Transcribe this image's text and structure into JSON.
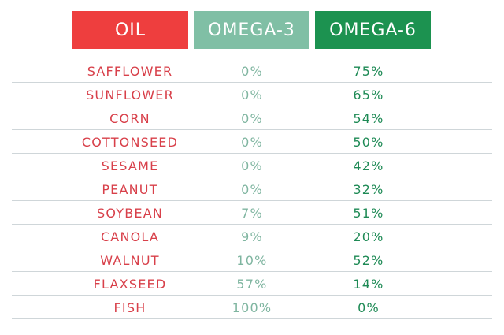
{
  "header": {
    "oil": "OIL",
    "omega3": "OMEGA-3",
    "omega6": "OMEGA-6"
  },
  "colors": {
    "oil_header": "#EE3E3E",
    "omega3_header": "#80BFA5",
    "omega6_header": "#1C9250",
    "oil_text": "#D8404A",
    "omega3_text": "#7FB5A0",
    "omega6_text": "#1E8A55"
  },
  "rows": [
    {
      "oil": "SAFFLOWER",
      "omega3": "0%",
      "omega6": "75%"
    },
    {
      "oil": "SUNFLOWER",
      "omega3": "0%",
      "omega6": "65%"
    },
    {
      "oil": "CORN",
      "omega3": "0%",
      "omega6": "54%"
    },
    {
      "oil": "COTTONSEED",
      "omega3": "0%",
      "omega6": "50%"
    },
    {
      "oil": "SESAME",
      "omega3": "0%",
      "omega6": "42%"
    },
    {
      "oil": "PEANUT",
      "omega3": "0%",
      "omega6": "32%"
    },
    {
      "oil": "SOYBEAN",
      "omega3": "7%",
      "omega6": "51%"
    },
    {
      "oil": "CANOLA",
      "omega3": "9%",
      "omega6": "20%"
    },
    {
      "oil": "WALNUT",
      "omega3": "10%",
      "omega6": "52%"
    },
    {
      "oil": "FLAXSEED",
      "omega3": "57%",
      "omega6": "14%"
    },
    {
      "oil": "FISH",
      "omega3": "100%",
      "omega6": "0%"
    }
  ],
  "chart_data": {
    "type": "table",
    "title": "",
    "columns": [
      "OIL",
      "OMEGA-3",
      "OMEGA-6"
    ],
    "categories": [
      "SAFFLOWER",
      "SUNFLOWER",
      "CORN",
      "COTTONSEED",
      "SESAME",
      "PEANUT",
      "SOYBEAN",
      "CANOLA",
      "WALNUT",
      "FLAXSEED",
      "FISH"
    ],
    "series": [
      {
        "name": "OMEGA-3",
        "unit": "%",
        "values": [
          0,
          0,
          0,
          0,
          0,
          0,
          7,
          9,
          10,
          57,
          100
        ]
      },
      {
        "name": "OMEGA-6",
        "unit": "%",
        "values": [
          75,
          65,
          54,
          50,
          42,
          32,
          51,
          20,
          52,
          14,
          0
        ]
      }
    ],
    "grid": "horizontal row dividers"
  }
}
